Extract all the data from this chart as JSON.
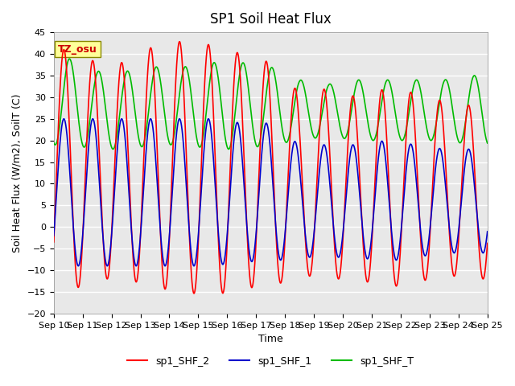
{
  "title": "SP1 Soil Heat Flux",
  "xlabel": "Time",
  "ylabel": "Soil Heat Flux (W/m2), SoilT (C)",
  "ylim": [
    -20,
    45
  ],
  "yticks": [
    -20,
    -15,
    -10,
    -5,
    0,
    5,
    10,
    15,
    20,
    25,
    30,
    35,
    40,
    45
  ],
  "xtick_labels": [
    "Sep 10",
    "Sep 11",
    "Sep 12",
    "Sep 13",
    "Sep 14",
    "Sep 15",
    "Sep 16",
    "Sep 17",
    "Sep 18",
    "Sep 19",
    "Sep 20",
    "Sep 21",
    "Sep 22",
    "Sep 23",
    "Sep 24",
    "Sep 25"
  ],
  "bg_color": "#e8e8e8",
  "grid_color": "#ffffff",
  "legend_labels": [
    "sp1_SHF_2",
    "sp1_SHF_1",
    "sp1_SHF_T"
  ],
  "legend_colors": [
    "#ff0000",
    "#0000cc",
    "#00bb00"
  ],
  "tz_label": "TZ_osu",
  "tz_box_color": "#ffff99",
  "tz_text_color": "#cc0000",
  "n_days": 15,
  "shf2_amp": [
    28,
    25,
    25,
    28,
    29,
    29,
    27,
    26,
    21,
    22,
    21,
    23,
    22,
    20,
    20
  ],
  "shf2_mean": [
    13,
    13,
    13,
    14,
    14,
    13,
    13,
    12,
    10,
    10,
    9,
    9,
    9,
    9,
    8
  ],
  "shf1_amp": [
    17,
    17,
    17,
    17,
    17,
    17,
    16,
    16,
    13,
    13,
    13,
    14,
    13,
    12,
    12
  ],
  "shf1_mean": [
    8,
    8,
    8,
    8,
    8,
    8,
    8,
    8,
    6,
    6,
    6,
    6,
    6,
    6,
    6
  ],
  "shft_mean": [
    29,
    27,
    27,
    28,
    28,
    28,
    28,
    28,
    27,
    27,
    27,
    27,
    27,
    27,
    27
  ],
  "shft_amp": [
    10,
    9,
    9,
    9,
    9,
    10,
    10,
    9,
    7,
    6,
    7,
    7,
    7,
    7,
    8
  ],
  "shf_phase": 0.82,
  "shft_phase": 0.05
}
